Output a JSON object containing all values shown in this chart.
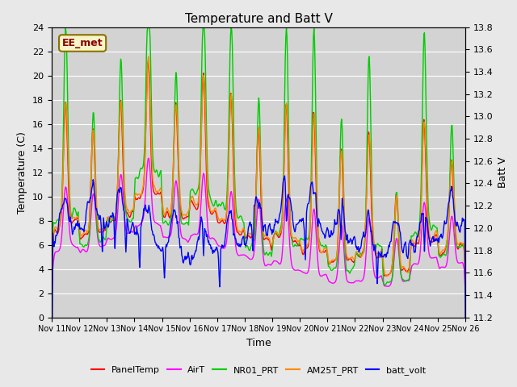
{
  "title": "Temperature and Batt V",
  "xlabel": "Time",
  "ylabel_left": "Temperature (C)",
  "ylabel_right": "Batt V",
  "annotation": "EE_met",
  "ylim_left": [
    0,
    24
  ],
  "ylim_right": [
    11.2,
    13.8
  ],
  "yticks_left": [
    0,
    2,
    4,
    6,
    8,
    10,
    12,
    14,
    16,
    18,
    20,
    22,
    24
  ],
  "yticks_right": [
    11.2,
    11.4,
    11.6,
    11.8,
    12.0,
    12.2,
    12.4,
    12.6,
    12.8,
    13.0,
    13.2,
    13.4,
    13.6,
    13.8
  ],
  "xtick_labels": [
    "Nov 11",
    "Nov 12",
    "Nov 13",
    "Nov 14",
    "Nov 15",
    "Nov 16",
    "Nov 17",
    "Nov 18",
    "Nov 19",
    "Nov 20",
    "Nov 21",
    "Nov 22",
    "Nov 23",
    "Nov 24",
    "Nov 25",
    "Nov 26"
  ],
  "series_colors": {
    "PanelTemp": "#ff0000",
    "AirT": "#ff00ff",
    "NR01_PRT": "#00cc00",
    "AM25T_PRT": "#ff8800",
    "batt_volt": "#0000ff"
  },
  "series_linewidth": 1.0,
  "background_color": "#e8e8e8",
  "plot_bg_color": "#d3d3d3",
  "grid_color": "#ffffff",
  "n_points": 720
}
